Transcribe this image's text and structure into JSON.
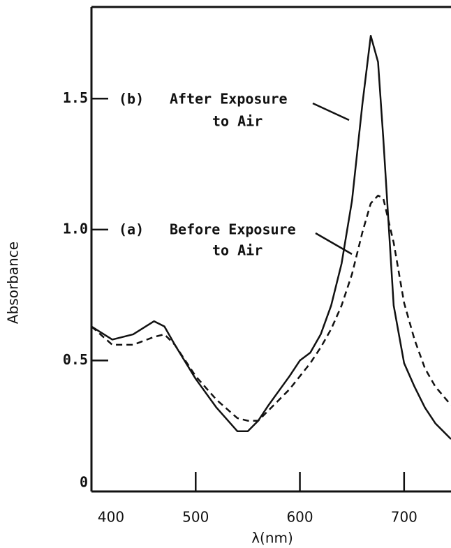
{
  "chart_data": {
    "type": "line",
    "xlabel": "λ(nm)",
    "ylabel": "Absorbance",
    "x": [
      400,
      420,
      440,
      460,
      470,
      480,
      500,
      520,
      540,
      550,
      560,
      570,
      580,
      590,
      600,
      610,
      620,
      630,
      640,
      650,
      660,
      668,
      675,
      680,
      690,
      700,
      710,
      720,
      730,
      745
    ],
    "series": [
      {
        "label": "(b)",
        "annotation": [
          "After Exposure",
          "to Air"
        ],
        "color": "#111111",
        "dash": false,
        "values": [
          0.63,
          0.58,
          0.6,
          0.65,
          0.63,
          0.56,
          0.43,
          0.32,
          0.23,
          0.23,
          0.27,
          0.33,
          0.385,
          0.44,
          0.5,
          0.53,
          0.6,
          0.71,
          0.87,
          1.11,
          1.48,
          1.74,
          1.64,
          1.35,
          0.71,
          0.49,
          0.4,
          0.32,
          0.26,
          0.2
        ]
      },
      {
        "label": "(a)",
        "annotation": [
          "Before Exposure",
          "to Air"
        ],
        "color": "#111111",
        "dash": true,
        "values": [
          0.63,
          0.56,
          0.56,
          0.59,
          0.6,
          0.56,
          0.44,
          0.35,
          0.28,
          0.27,
          0.27,
          0.31,
          0.35,
          0.39,
          0.44,
          0.49,
          0.55,
          0.62,
          0.71,
          0.83,
          0.99,
          1.1,
          1.13,
          1.12,
          0.95,
          0.72,
          0.58,
          0.47,
          0.4,
          0.33
        ]
      }
    ],
    "xlim": [
      400,
      745
    ],
    "ylim": [
      0,
      1.85
    ],
    "xticks": [
      400,
      500,
      600,
      700
    ],
    "yticks": [
      0,
      0.5,
      {
        "value": 1,
        "label": "1.0"
      },
      1.5
    ]
  }
}
